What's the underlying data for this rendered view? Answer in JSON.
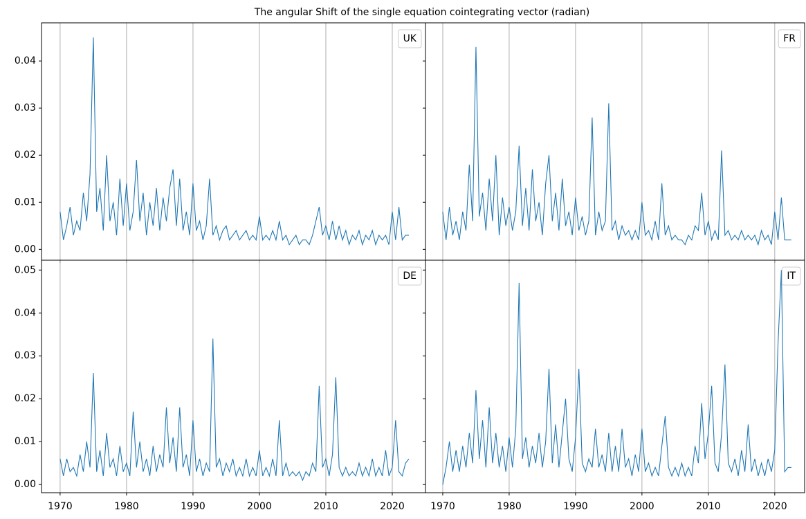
{
  "title": "The angular Shift of the single equation cointegrating vector (radian)",
  "chart_data": [
    {
      "type": "line",
      "legend": "upper right",
      "grid": "x",
      "x": [
        1970,
        1970.5,
        1971,
        1971.5,
        1972,
        1972.5,
        1973,
        1973.5,
        1974,
        1974.5,
        1975,
        1975.5,
        1976,
        1976.5,
        1977,
        1977.5,
        1978,
        1978.5,
        1979,
        1979.5,
        1980,
        1980.5,
        1981,
        1981.5,
        1982,
        1982.5,
        1983,
        1983.5,
        1984,
        1984.5,
        1985,
        1985.5,
        1986,
        1986.5,
        1987,
        1987.5,
        1988,
        1988.5,
        1989,
        1989.5,
        1990,
        1990.5,
        1991,
        1991.5,
        1992,
        1992.5,
        1993,
        1993.5,
        1994,
        1994.5,
        1995,
        1995.5,
        1996,
        1996.5,
        1997,
        1997.5,
        1998,
        1998.5,
        1999,
        1999.5,
        2000,
        2000.5,
        2001,
        2001.5,
        2002,
        2002.5,
        2003,
        2003.5,
        2004,
        2004.5,
        2005,
        2005.5,
        2006,
        2006.5,
        2007,
        2007.5,
        2008,
        2008.5,
        2009,
        2009.5,
        2010,
        2010.5,
        2011,
        2011.5,
        2012,
        2012.5,
        2013,
        2013.5,
        2014,
        2014.5,
        2015,
        2015.5,
        2016,
        2016.5,
        2017,
        2017.5,
        2018,
        2018.5,
        2019,
        2019.5,
        2020,
        2020.5,
        2021,
        2021.5,
        2022,
        2022.5
      ],
      "series": [
        {
          "name": "UK",
          "color": "#1f77b4",
          "values": [
            0.008,
            0.002,
            0.005,
            0.009,
            0.003,
            0.006,
            0.004,
            0.012,
            0.006,
            0.016,
            0.045,
            0.008,
            0.013,
            0.004,
            0.02,
            0.006,
            0.01,
            0.003,
            0.015,
            0.005,
            0.014,
            0.004,
            0.008,
            0.019,
            0.006,
            0.012,
            0.003,
            0.01,
            0.005,
            0.013,
            0.004,
            0.011,
            0.006,
            0.013,
            0.017,
            0.005,
            0.015,
            0.004,
            0.008,
            0.003,
            0.014,
            0.004,
            0.006,
            0.002,
            0.005,
            0.015,
            0.003,
            0.005,
            0.002,
            0.004,
            0.005,
            0.002,
            0.003,
            0.004,
            0.002,
            0.003,
            0.004,
            0.002,
            0.003,
            0.002,
            0.007,
            0.002,
            0.003,
            0.002,
            0.004,
            0.002,
            0.006,
            0.002,
            0.003,
            0.001,
            0.002,
            0.003,
            0.001,
            0.002,
            0.002,
            0.001,
            0.003,
            0.006,
            0.009,
            0.003,
            0.005,
            0.002,
            0.006,
            0.002,
            0.005,
            0.002,
            0.004,
            0.001,
            0.003,
            0.002,
            0.004,
            0.001,
            0.003,
            0.002,
            0.004,
            0.001,
            0.003,
            0.002,
            0.003,
            0.001,
            0.008,
            0.002,
            0.009,
            0.002,
            0.003,
            0.003
          ]
        }
      ],
      "ylim": [
        -0.0023,
        0.0481
      ],
      "yticks": [
        {
          "value": 0,
          "label": "0.00"
        },
        {
          "value": 0.01,
          "label": "0.01"
        },
        {
          "value": 0.02,
          "label": "0.02"
        },
        {
          "value": 0.03,
          "label": "0.03"
        },
        {
          "value": 0.04,
          "label": "0.04"
        }
      ],
      "xlim": [
        1967.2,
        2025.0
      ],
      "xticks": [
        1970,
        1980,
        1990,
        2000,
        2010,
        2020
      ]
    },
    {
      "type": "line",
      "legend": "upper right",
      "grid": "x",
      "x": [
        1970,
        1970.5,
        1971,
        1971.5,
        1972,
        1972.5,
        1973,
        1973.5,
        1974,
        1974.5,
        1975,
        1975.5,
        1976,
        1976.5,
        1977,
        1977.5,
        1978,
        1978.5,
        1979,
        1979.5,
        1980,
        1980.5,
        1981,
        1981.5,
        1982,
        1982.5,
        1983,
        1983.5,
        1984,
        1984.5,
        1985,
        1985.5,
        1986,
        1986.5,
        1987,
        1987.5,
        1988,
        1988.5,
        1989,
        1989.5,
        1990,
        1990.5,
        1991,
        1991.5,
        1992,
        1992.5,
        1993,
        1993.5,
        1994,
        1994.5,
        1995,
        1995.5,
        1996,
        1996.5,
        1997,
        1997.5,
        1998,
        1998.5,
        1999,
        1999.5,
        2000,
        2000.5,
        2001,
        2001.5,
        2002,
        2002.5,
        2003,
        2003.5,
        2004,
        2004.5,
        2005,
        2005.5,
        2006,
        2006.5,
        2007,
        2007.5,
        2008,
        2008.5,
        2009,
        2009.5,
        2010,
        2010.5,
        2011,
        2011.5,
        2012,
        2012.5,
        2013,
        2013.5,
        2014,
        2014.5,
        2015,
        2015.5,
        2016,
        2016.5,
        2017,
        2017.5,
        2018,
        2018.5,
        2019,
        2019.5,
        2020,
        2020.5,
        2021,
        2021.5,
        2022,
        2022.5
      ],
      "series": [
        {
          "name": "FR",
          "color": "#1f77b4",
          "values": [
            0.008,
            0.002,
            0.009,
            0.003,
            0.006,
            0.002,
            0.008,
            0.004,
            0.018,
            0.006,
            0.043,
            0.007,
            0.012,
            0.004,
            0.015,
            0.006,
            0.02,
            0.003,
            0.011,
            0.005,
            0.009,
            0.004,
            0.008,
            0.022,
            0.005,
            0.013,
            0.004,
            0.017,
            0.006,
            0.01,
            0.003,
            0.014,
            0.02,
            0.006,
            0.012,
            0.004,
            0.015,
            0.005,
            0.008,
            0.003,
            0.011,
            0.004,
            0.007,
            0.003,
            0.006,
            0.028,
            0.003,
            0.008,
            0.004,
            0.006,
            0.031,
            0.004,
            0.006,
            0.002,
            0.005,
            0.003,
            0.004,
            0.002,
            0.004,
            0.002,
            0.01,
            0.003,
            0.004,
            0.002,
            0.006,
            0.002,
            0.014,
            0.003,
            0.005,
            0.002,
            0.003,
            0.002,
            0.002,
            0.001,
            0.003,
            0.002,
            0.005,
            0.004,
            0.012,
            0.003,
            0.006,
            0.002,
            0.004,
            0.002,
            0.021,
            0.003,
            0.004,
            0.002,
            0.003,
            0.002,
            0.004,
            0.002,
            0.003,
            0.002,
            0.003,
            0.001,
            0.004,
            0.002,
            0.003,
            0.001,
            0.008,
            0.002,
            0.011,
            0.002,
            0.002,
            0.002
          ]
        }
      ],
      "ylim": [
        -0.0023,
        0.0481
      ],
      "yticks": [
        0,
        0.01,
        0.02,
        0.03,
        0.04
      ],
      "xlim": [
        1967.4,
        2024.5
      ],
      "xticks": [
        1970,
        1980,
        1990,
        2000,
        2010,
        2020
      ]
    },
    {
      "type": "line",
      "legend": "upper right",
      "grid": "x",
      "x": [
        1970,
        1970.5,
        1971,
        1971.5,
        1972,
        1972.5,
        1973,
        1973.5,
        1974,
        1974.5,
        1975,
        1975.5,
        1976,
        1976.5,
        1977,
        1977.5,
        1978,
        1978.5,
        1979,
        1979.5,
        1980,
        1980.5,
        1981,
        1981.5,
        1982,
        1982.5,
        1983,
        1983.5,
        1984,
        1984.5,
        1985,
        1985.5,
        1986,
        1986.5,
        1987,
        1987.5,
        1988,
        1988.5,
        1989,
        1989.5,
        1990,
        1990.5,
        1991,
        1991.5,
        1992,
        1992.5,
        1993,
        1993.5,
        1994,
        1994.5,
        1995,
        1995.5,
        1996,
        1996.5,
        1997,
        1997.5,
        1998,
        1998.5,
        1999,
        1999.5,
        2000,
        2000.5,
        2001,
        2001.5,
        2002,
        2002.5,
        2003,
        2003.5,
        2004,
        2004.5,
        2005,
        2005.5,
        2006,
        2006.5,
        2007,
        2007.5,
        2008,
        2008.5,
        2009,
        2009.5,
        2010,
        2010.5,
        2011,
        2011.5,
        2012,
        2012.5,
        2013,
        2013.5,
        2014,
        2014.5,
        2015,
        2015.5,
        2016,
        2016.5,
        2017,
        2017.5,
        2018,
        2018.5,
        2019,
        2019.5,
        2020,
        2020.5,
        2021,
        2021.5,
        2022,
        2022.5
      ],
      "series": [
        {
          "name": "DE",
          "color": "#1f77b4",
          "values": [
            0.006,
            0.002,
            0.006,
            0.003,
            0.004,
            0.002,
            0.007,
            0.003,
            0.01,
            0.004,
            0.026,
            0.003,
            0.008,
            0.002,
            0.012,
            0.004,
            0.006,
            0.002,
            0.009,
            0.003,
            0.005,
            0.002,
            0.017,
            0.004,
            0.01,
            0.003,
            0.006,
            0.002,
            0.009,
            0.003,
            0.007,
            0.004,
            0.018,
            0.005,
            0.011,
            0.003,
            0.018,
            0.004,
            0.007,
            0.002,
            0.015,
            0.003,
            0.006,
            0.002,
            0.005,
            0.003,
            0.034,
            0.004,
            0.006,
            0.002,
            0.005,
            0.003,
            0.006,
            0.002,
            0.004,
            0.002,
            0.006,
            0.002,
            0.004,
            0.002,
            0.008,
            0.002,
            0.004,
            0.002,
            0.006,
            0.002,
            0.015,
            0.002,
            0.005,
            0.002,
            0.003,
            0.002,
            0.003,
            0.001,
            0.003,
            0.002,
            0.005,
            0.003,
            0.023,
            0.004,
            0.006,
            0.002,
            0.007,
            0.025,
            0.004,
            0.002,
            0.004,
            0.002,
            0.003,
            0.002,
            0.005,
            0.002,
            0.004,
            0.002,
            0.006,
            0.002,
            0.004,
            0.002,
            0.008,
            0.002,
            0.004,
            0.015,
            0.003,
            0.002,
            0.005,
            0.006
          ]
        }
      ],
      "ylim": [
        -0.0019,
        0.0523
      ],
      "yticks": [
        {
          "value": 0,
          "label": "0.00"
        },
        {
          "value": 0.01,
          "label": "0.01"
        },
        {
          "value": 0.02,
          "label": "0.02"
        },
        {
          "value": 0.03,
          "label": "0.03"
        },
        {
          "value": 0.04,
          "label": "0.04"
        },
        {
          "value": 0.05,
          "label": "0.05"
        }
      ],
      "xlim": [
        1967.2,
        2025.0
      ],
      "xticks": [
        1970,
        1980,
        1990,
        2000,
        2010,
        2020
      ]
    },
    {
      "type": "line",
      "legend": "upper right",
      "grid": "x",
      "x": [
        1970,
        1970.5,
        1971,
        1971.5,
        1972,
        1972.5,
        1973,
        1973.5,
        1974,
        1974.5,
        1975,
        1975.5,
        1976,
        1976.5,
        1977,
        1977.5,
        1978,
        1978.5,
        1979,
        1979.5,
        1980,
        1980.5,
        1981,
        1981.5,
        1982,
        1982.5,
        1983,
        1983.5,
        1984,
        1984.5,
        1985,
        1985.5,
        1986,
        1986.5,
        1987,
        1987.5,
        1988,
        1988.5,
        1989,
        1989.5,
        1990,
        1990.5,
        1991,
        1991.5,
        1992,
        1992.5,
        1993,
        1993.5,
        1994,
        1994.5,
        1995,
        1995.5,
        1996,
        1996.5,
        1997,
        1997.5,
        1998,
        1998.5,
        1999,
        1999.5,
        2000,
        2000.5,
        2001,
        2001.5,
        2002,
        2002.5,
        2003,
        2003.5,
        2004,
        2004.5,
        2005,
        2005.5,
        2006,
        2006.5,
        2007,
        2007.5,
        2008,
        2008.5,
        2009,
        2009.5,
        2010,
        2010.5,
        2011,
        2011.5,
        2012,
        2012.5,
        2013,
        2013.5,
        2014,
        2014.5,
        2015,
        2015.5,
        2016,
        2016.5,
        2017,
        2017.5,
        2018,
        2018.5,
        2019,
        2019.5,
        2020,
        2020.5,
        2021,
        2021.5,
        2022,
        2022.5
      ],
      "series": [
        {
          "name": "IT",
          "color": "#1f77b4",
          "values": [
            0.0,
            0.004,
            0.01,
            0.003,
            0.008,
            0.003,
            0.009,
            0.004,
            0.012,
            0.005,
            0.022,
            0.006,
            0.015,
            0.004,
            0.018,
            0.005,
            0.012,
            0.004,
            0.009,
            0.003,
            0.011,
            0.004,
            0.013,
            0.047,
            0.006,
            0.011,
            0.004,
            0.009,
            0.005,
            0.012,
            0.004,
            0.01,
            0.027,
            0.005,
            0.014,
            0.004,
            0.012,
            0.02,
            0.006,
            0.003,
            0.011,
            0.027,
            0.005,
            0.003,
            0.006,
            0.004,
            0.013,
            0.004,
            0.007,
            0.003,
            0.012,
            0.003,
            0.009,
            0.003,
            0.013,
            0.004,
            0.006,
            0.002,
            0.007,
            0.003,
            0.013,
            0.003,
            0.005,
            0.002,
            0.004,
            0.002,
            0.009,
            0.016,
            0.004,
            0.002,
            0.004,
            0.002,
            0.005,
            0.002,
            0.004,
            0.002,
            0.009,
            0.005,
            0.019,
            0.006,
            0.012,
            0.023,
            0.005,
            0.003,
            0.012,
            0.028,
            0.005,
            0.003,
            0.006,
            0.002,
            0.008,
            0.003,
            0.014,
            0.003,
            0.006,
            0.002,
            0.005,
            0.002,
            0.006,
            0.003,
            0.008,
            0.033,
            0.05,
            0.003,
            0.004,
            0.004
          ]
        }
      ],
      "ylim": [
        -0.0019,
        0.0523
      ],
      "yticks": [
        0,
        0.01,
        0.02,
        0.03,
        0.04,
        0.05
      ],
      "xlim": [
        1967.4,
        2024.5
      ],
      "xticks": [
        1970,
        1980,
        1990,
        2000,
        2010,
        2020
      ]
    }
  ]
}
